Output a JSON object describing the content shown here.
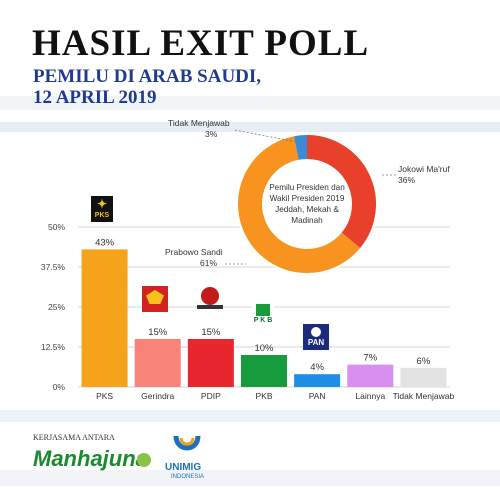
{
  "header": {
    "title": "HASIL EXIT POLL",
    "subtitle_line1": "PEMILU DI ARAB SAUDI,",
    "subtitle_line2": "12 APRIL 2019"
  },
  "chart_data": [
    {
      "type": "bar",
      "categories": [
        "PKS",
        "Gerindra",
        "PDIP",
        "PKB",
        "PAN",
        "Lainnya",
        "Tidak Menjawab"
      ],
      "values": [
        43,
        15,
        15,
        10,
        4,
        7,
        6
      ],
      "value_labels": [
        "43%",
        "15%",
        "15%",
        "10%",
        "4%",
        "7%",
        "6%"
      ],
      "colors": [
        "#f7a21b",
        "#f88378",
        "#e8262d",
        "#169c3c",
        "#1d8fe6",
        "#d98ff0",
        "#e3e3e3"
      ],
      "ylim": [
        0,
        50
      ],
      "yticks": [
        "0%",
        "12.5%",
        "25%",
        "37.5%",
        "50%"
      ],
      "ytick_values": [
        0,
        12.5,
        25,
        37.5,
        50
      ],
      "grid": true
    },
    {
      "type": "pie",
      "donut": true,
      "center_label": [
        "Pemilu Presiden dan",
        "Wakil Presiden 2019",
        "Jeddah, Mekah &",
        "Madinah"
      ],
      "slices": [
        {
          "label": "Jokowi Ma'ruf",
          "value": 36,
          "value_label": "36%",
          "color": "#e8402a"
        },
        {
          "label": "Prabowo Sandi",
          "value": 61,
          "value_label": "61%",
          "color": "#f7931e"
        },
        {
          "label": "Tidak Menjawab",
          "value": 3,
          "value_label": "3%",
          "color": "#3a8ad6"
        }
      ]
    }
  ],
  "logos": {
    "pks": "PKS",
    "pkb": "P K B",
    "pan": "PAN"
  },
  "footer": {
    "kerjasama": "KERJASAMA ANTARA",
    "manhajuna": "Manhajuna",
    "unimig": "UNIMIG",
    "unimig_sub": "INDONESIA"
  }
}
